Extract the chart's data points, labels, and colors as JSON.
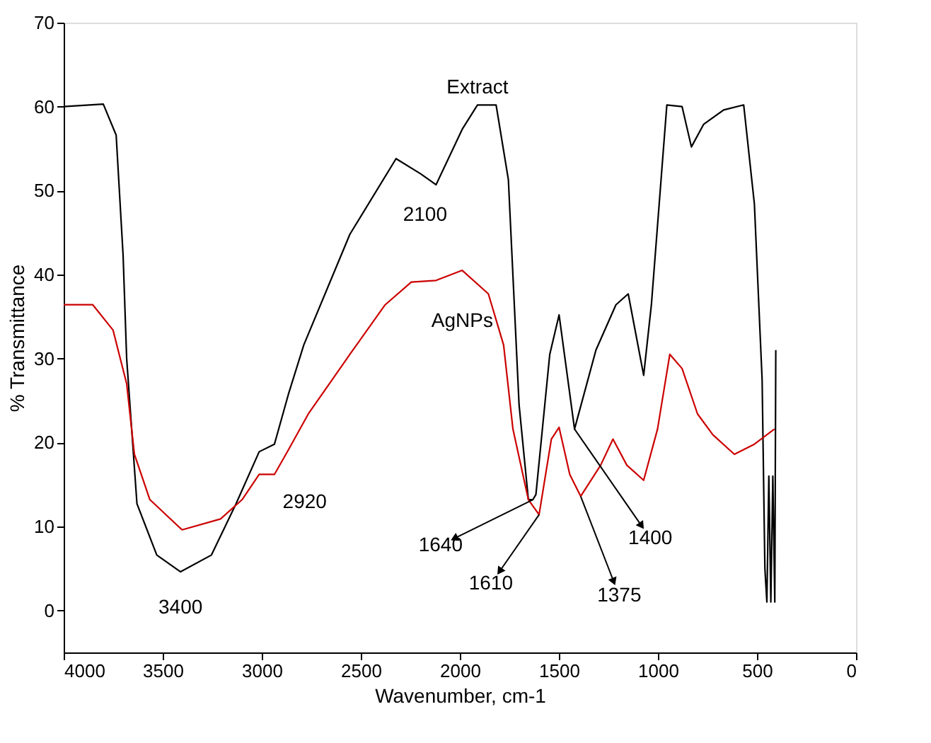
{
  "chart_data": {
    "type": "line",
    "xlabel": "Wavenumber, cm-1",
    "ylabel": "% Transmittance",
    "xlim": [
      4000,
      0
    ],
    "xticks": [
      4000,
      3500,
      3000,
      2500,
      2000,
      1500,
      1000,
      500,
      0
    ],
    "ylim": [
      -5,
      70
    ],
    "yticks": [
      0,
      10,
      20,
      30,
      40,
      50,
      60,
      70
    ],
    "grid": false,
    "legend": false,
    "line_style": "solid",
    "marker": "none",
    "series": [
      {
        "name": "Extract",
        "color": "#000000",
        "x": [
          4000,
          3800,
          3735,
          3700,
          3682,
          3630,
          3530,
          3410,
          3254,
          3130,
          3013,
          2936,
          2866,
          2788,
          2555,
          2322,
          2198,
          2120,
          1988,
          1911,
          1817,
          1755,
          1701,
          1654,
          1631,
          1616,
          1546,
          1499,
          1421,
          1313,
          1212,
          1150,
          1072,
          1033,
          955,
          878,
          831,
          769,
          668,
          567,
          513,
          474,
          460,
          450,
          440,
          430,
          420,
          410,
          405
        ],
        "values": [
          60,
          60.3,
          56.6,
          42.3,
          30,
          12.7,
          6.6,
          4.6,
          6.6,
          12.7,
          18.9,
          19.8,
          25.7,
          31.6,
          44.8,
          53.8,
          52,
          50.7,
          57.3,
          60.2,
          60.2,
          51.3,
          24.5,
          13.2,
          13.2,
          13.8,
          30.5,
          35.2,
          21.6,
          31,
          36.4,
          37.7,
          28,
          36.4,
          60.2,
          60,
          55.2,
          57.9,
          59.6,
          60.2,
          48.4,
          27.5,
          5,
          1,
          16,
          1,
          16,
          1,
          31
        ]
      },
      {
        "name": "AgNPs",
        "color": "#cc0000",
        "x": [
          4000,
          3853,
          3751,
          3682,
          3643,
          3565,
          3402,
          3208,
          3099,
          3013,
          2936,
          2866,
          2765,
          2555,
          2377,
          2245,
          2120,
          1988,
          1856,
          1779,
          1732,
          1654,
          1600,
          1538,
          1499,
          1445,
          1390,
          1289,
          1227,
          1157,
          1072,
          1002,
          940,
          878,
          800,
          722,
          614,
          513,
          412
        ],
        "values": [
          36.4,
          36.4,
          33.4,
          27,
          18.6,
          13.2,
          9.6,
          10.9,
          13.2,
          16.2,
          16.2,
          19.1,
          23.4,
          30.5,
          36.4,
          39.1,
          39.3,
          40.5,
          37.7,
          31.6,
          21.6,
          13.2,
          11.4,
          20.4,
          21.8,
          16.2,
          13.6,
          17.3,
          20.4,
          17.3,
          15.5,
          21.6,
          30.5,
          28.8,
          23.4,
          20.9,
          18.6,
          19.8,
          21.6
        ]
      }
    ],
    "annotations": [
      {
        "text": "2100",
        "x": 2120,
        "y": 50.7
      },
      {
        "text": "2920",
        "x": 2936,
        "y": 16.2
      },
      {
        "text": "3400",
        "x": 3410,
        "y": 4.6
      },
      {
        "text": "1640",
        "x": 1631,
        "y": 13.2
      },
      {
        "text": "1610",
        "x": 1600,
        "y": 11.4
      },
      {
        "text": "1375",
        "x": 1390,
        "y": 13.6
      },
      {
        "text": "1400",
        "x": 1421,
        "y": 21.6
      }
    ]
  }
}
